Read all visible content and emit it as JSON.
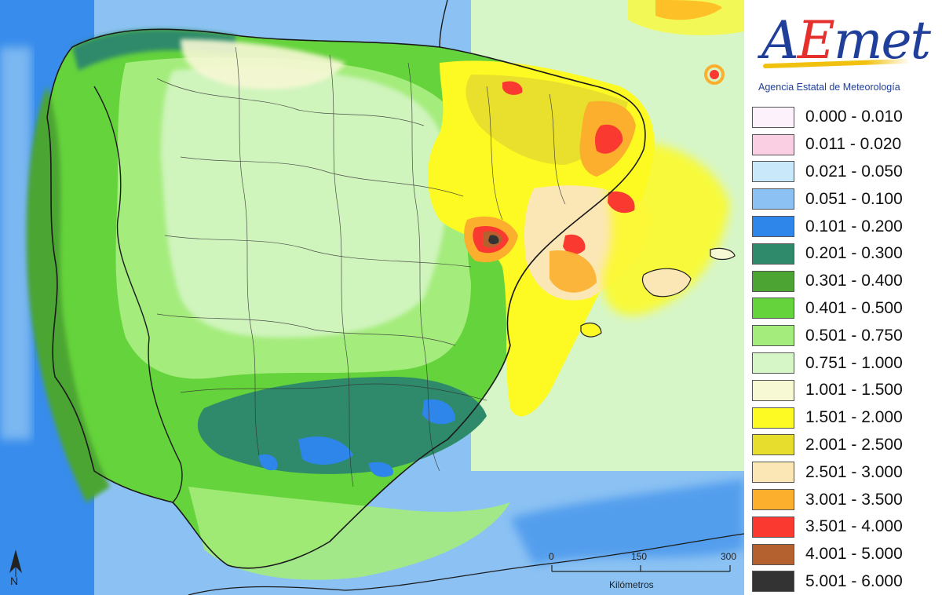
{
  "logo": {
    "word_a": "A",
    "word_e": "E",
    "word_met": "met",
    "subtitle": "Agencia Estatal de Meteorología",
    "colors": {
      "blue": "#1f3f9a",
      "red": "#e5302d",
      "yellow": "#f0c20f"
    }
  },
  "legend": [
    {
      "label": "0.000 - 0.010",
      "color": "#fdf1fb"
    },
    {
      "label": "0.011 - 0.020",
      "color": "#fbcfe3"
    },
    {
      "label": "0.021 - 0.050",
      "color": "#c9e9fb"
    },
    {
      "label": "0.051 - 0.100",
      "color": "#8cc2f3"
    },
    {
      "label": "0.101 - 0.200",
      "color": "#2f86ea"
    },
    {
      "label": "0.201 - 0.300",
      "color": "#2e8a6a"
    },
    {
      "label": "0.301 - 0.400",
      "color": "#4ca532"
    },
    {
      "label": "0.401 - 0.500",
      "color": "#65d33b"
    },
    {
      "label": "0.501 - 0.750",
      "color": "#a4ec7c"
    },
    {
      "label": "0.751 - 1.000",
      "color": "#d7f6c8"
    },
    {
      "label": "1.001 - 1.500",
      "color": "#f7f8d4"
    },
    {
      "label": "1.501 - 2.000",
      "color": "#fdfa23"
    },
    {
      "label": "2.001 - 2.500",
      "color": "#e6dd2d"
    },
    {
      "label": "2.501 - 3.000",
      "color": "#fbe7b6"
    },
    {
      "label": "3.001 - 3.500",
      "color": "#fbaf2d"
    },
    {
      "label": "3.501 - 4.000",
      "color": "#fa3a31"
    },
    {
      "label": "4.001 - 5.000",
      "color": "#b4602f"
    },
    {
      "label": "5.001 - 6.000",
      "color": "#333333"
    }
  ],
  "scale": {
    "ticks": [
      "0",
      "150",
      "300"
    ],
    "unit": "Kilómetros"
  },
  "north": {
    "letter": "N"
  }
}
